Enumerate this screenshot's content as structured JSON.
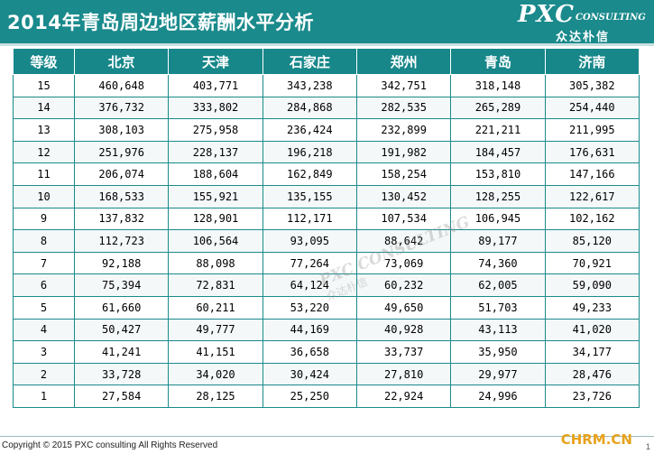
{
  "header": {
    "title": "2014年青岛周边地区薪酬水平分析"
  },
  "logo": {
    "pxc": "PXC",
    "consulting": "CONSULTING",
    "cn": "众达朴信"
  },
  "table": {
    "columns": [
      "等级",
      "北京",
      "天津",
      "石家庄",
      "郑州",
      "青岛",
      "济南"
    ],
    "rows": [
      [
        "15",
        "460,648",
        "403,771",
        "343,238",
        "342,751",
        "318,148",
        "305,382"
      ],
      [
        "14",
        "376,732",
        "333,802",
        "284,868",
        "282,535",
        "265,289",
        "254,440"
      ],
      [
        "13",
        "308,103",
        "275,958",
        "236,424",
        "232,899",
        "221,211",
        "211,995"
      ],
      [
        "12",
        "251,976",
        "228,137",
        "196,218",
        "191,982",
        "184,457",
        "176,631"
      ],
      [
        "11",
        "206,074",
        "188,604",
        "162,849",
        "158,254",
        "153,810",
        "147,166"
      ],
      [
        "10",
        "168,533",
        "155,921",
        "135,155",
        "130,452",
        "128,255",
        "122,617"
      ],
      [
        "9",
        "137,832",
        "128,901",
        "112,171",
        "107,534",
        "106,945",
        "102,162"
      ],
      [
        "8",
        "112,723",
        "106,564",
        "93,095",
        "88,642",
        "89,177",
        "85,120"
      ],
      [
        "7",
        "92,188",
        "88,098",
        "77,264",
        "73,069",
        "74,360",
        "70,921"
      ],
      [
        "6",
        "75,394",
        "72,831",
        "64,124",
        "60,232",
        "62,005",
        "59,090"
      ],
      [
        "5",
        "61,660",
        "60,211",
        "53,220",
        "49,650",
        "51,703",
        "49,233"
      ],
      [
        "4",
        "50,427",
        "49,777",
        "44,169",
        "40,928",
        "43,113",
        "41,020"
      ],
      [
        "3",
        "41,241",
        "41,151",
        "36,658",
        "33,737",
        "35,950",
        "34,177"
      ],
      [
        "2",
        "33,728",
        "34,020",
        "30,424",
        "27,810",
        "29,977",
        "28,476"
      ],
      [
        "1",
        "27,584",
        "28,125",
        "25,250",
        "22,924",
        "24,996",
        "23,726"
      ]
    ]
  },
  "watermark": {
    "line1": "PXC CONSULTING",
    "line2": "众达朴信"
  },
  "footer": {
    "copyright": "Copyright © 2015 PXC consulting All Rights Reserved",
    "site": "CHRM.CN",
    "page": "1"
  }
}
